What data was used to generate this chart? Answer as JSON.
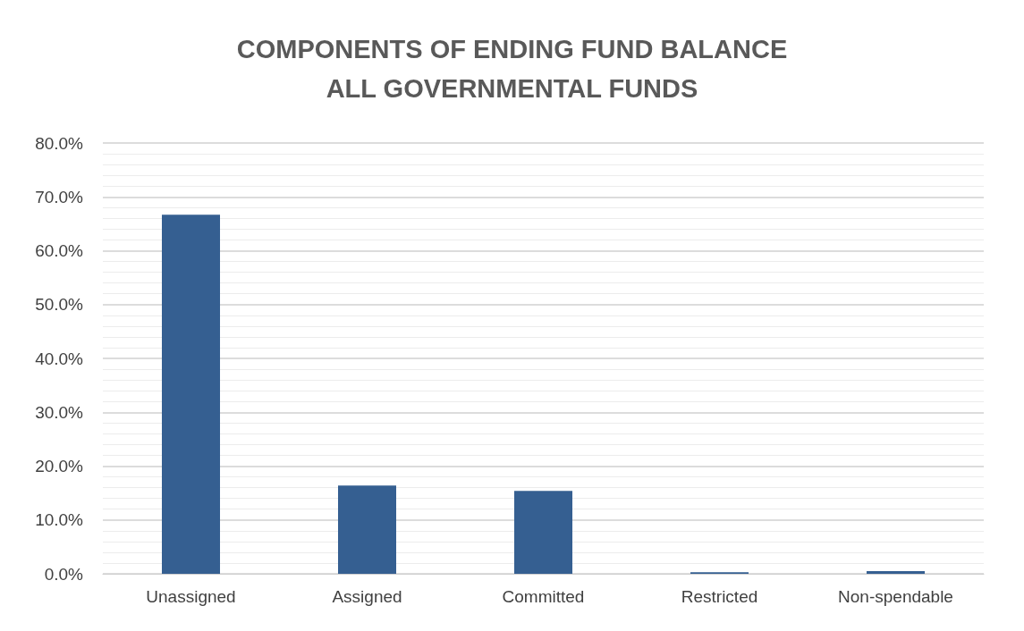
{
  "chart_data": {
    "type": "bar",
    "title": "COMPONENTS OF ENDING FUND BALANCE\nALL GOVERNMENTAL FUNDS",
    "categories": [
      "Unassigned",
      "Assigned",
      "Committed",
      "Restricted",
      "Non-spendable"
    ],
    "values": [
      66.7,
      16.4,
      15.4,
      0.3,
      0.5
    ],
    "color": "#355f91",
    "ylim": [
      0,
      80
    ],
    "yticks": [
      {
        "value": 0,
        "label": "0.0%"
      },
      {
        "value": 10,
        "label": "10.0%"
      },
      {
        "value": 20,
        "label": "20.0%"
      },
      {
        "value": 30,
        "label": "30.0%"
      },
      {
        "value": 40,
        "label": "40.0%"
      },
      {
        "value": 50,
        "label": "50.0%"
      },
      {
        "value": 60,
        "label": "60.0%"
      },
      {
        "value": 70,
        "label": "70.0%"
      },
      {
        "value": 80,
        "label": "80.0%"
      }
    ],
    "grid": true
  }
}
